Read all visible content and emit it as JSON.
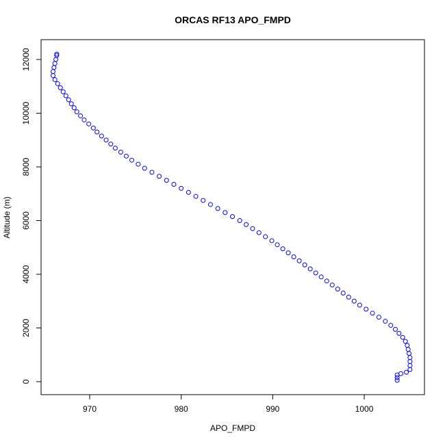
{
  "chart_data": {
    "type": "scatter",
    "title": "ORCAS RF13 APO_FMPD",
    "x_label": "APO_FMPD",
    "y_label": "Altitude (m)",
    "color": "#0000ff",
    "xlim": [
      964.69,
      1006.58
    ],
    "ylim": [
      -484,
      12739
    ],
    "xticks": [
      970,
      980,
      990,
      1000
    ],
    "yticks": [
      0,
      2000,
      4000,
      6000,
      8000,
      10000,
      12000
    ],
    "x": [
      966.4,
      966.4,
      966.3,
      966.2,
      966.1,
      966.0,
      966.0,
      966.2,
      966.5,
      966.8,
      967.1,
      967.4,
      967.7,
      968.0,
      968.3,
      968.6,
      969.0,
      969.4,
      969.9,
      970.4,
      970.8,
      971.3,
      971.8,
      972.3,
      972.8,
      973.4,
      974.0,
      974.6,
      975.3,
      976.0,
      976.8,
      977.6,
      978.4,
      979.2,
      980.0,
      980.8,
      981.6,
      982.4,
      983.2,
      984.0,
      984.8,
      985.6,
      986.4,
      987.1,
      987.8,
      988.5,
      989.2,
      989.9,
      990.5,
      991.1,
      991.7,
      992.3,
      992.9,
      993.5,
      994.1,
      994.7,
      995.3,
      995.9,
      996.5,
      997.1,
      997.7,
      998.3,
      998.9,
      999.5,
      1000.2,
      1000.9,
      1001.6,
      1002.3,
      1002.9,
      1003.4,
      1003.8,
      1004.2,
      1004.5,
      1004.7,
      1004.8,
      1004.9,
      1005.0,
      1005.0,
      1005.0,
      1005.0,
      1004.6,
      1004.0,
      1003.6,
      1003.6,
      1003.6
    ],
    "values": [
      12200,
      12150,
      12000,
      11850,
      11700,
      11550,
      11400,
      11250,
      11100,
      10950,
      10800,
      10650,
      10500,
      10350,
      10200,
      10050,
      9900,
      9750,
      9600,
      9450,
      9300,
      9150,
      9000,
      8850,
      8700,
      8550,
      8400,
      8250,
      8100,
      7950,
      7800,
      7650,
      7500,
      7350,
      7200,
      7050,
      6900,
      6750,
      6600,
      6450,
      6300,
      6150,
      6000,
      5850,
      5700,
      5550,
      5400,
      5250,
      5100,
      4950,
      4800,
      4650,
      4500,
      4350,
      4200,
      4050,
      3900,
      3750,
      3600,
      3450,
      3300,
      3150,
      3000,
      2850,
      2700,
      2550,
      2400,
      2250,
      2100,
      1950,
      1800,
      1650,
      1500,
      1350,
      1200,
      1050,
      900,
      750,
      600,
      450,
      350,
      300,
      250,
      150,
      50
    ]
  }
}
